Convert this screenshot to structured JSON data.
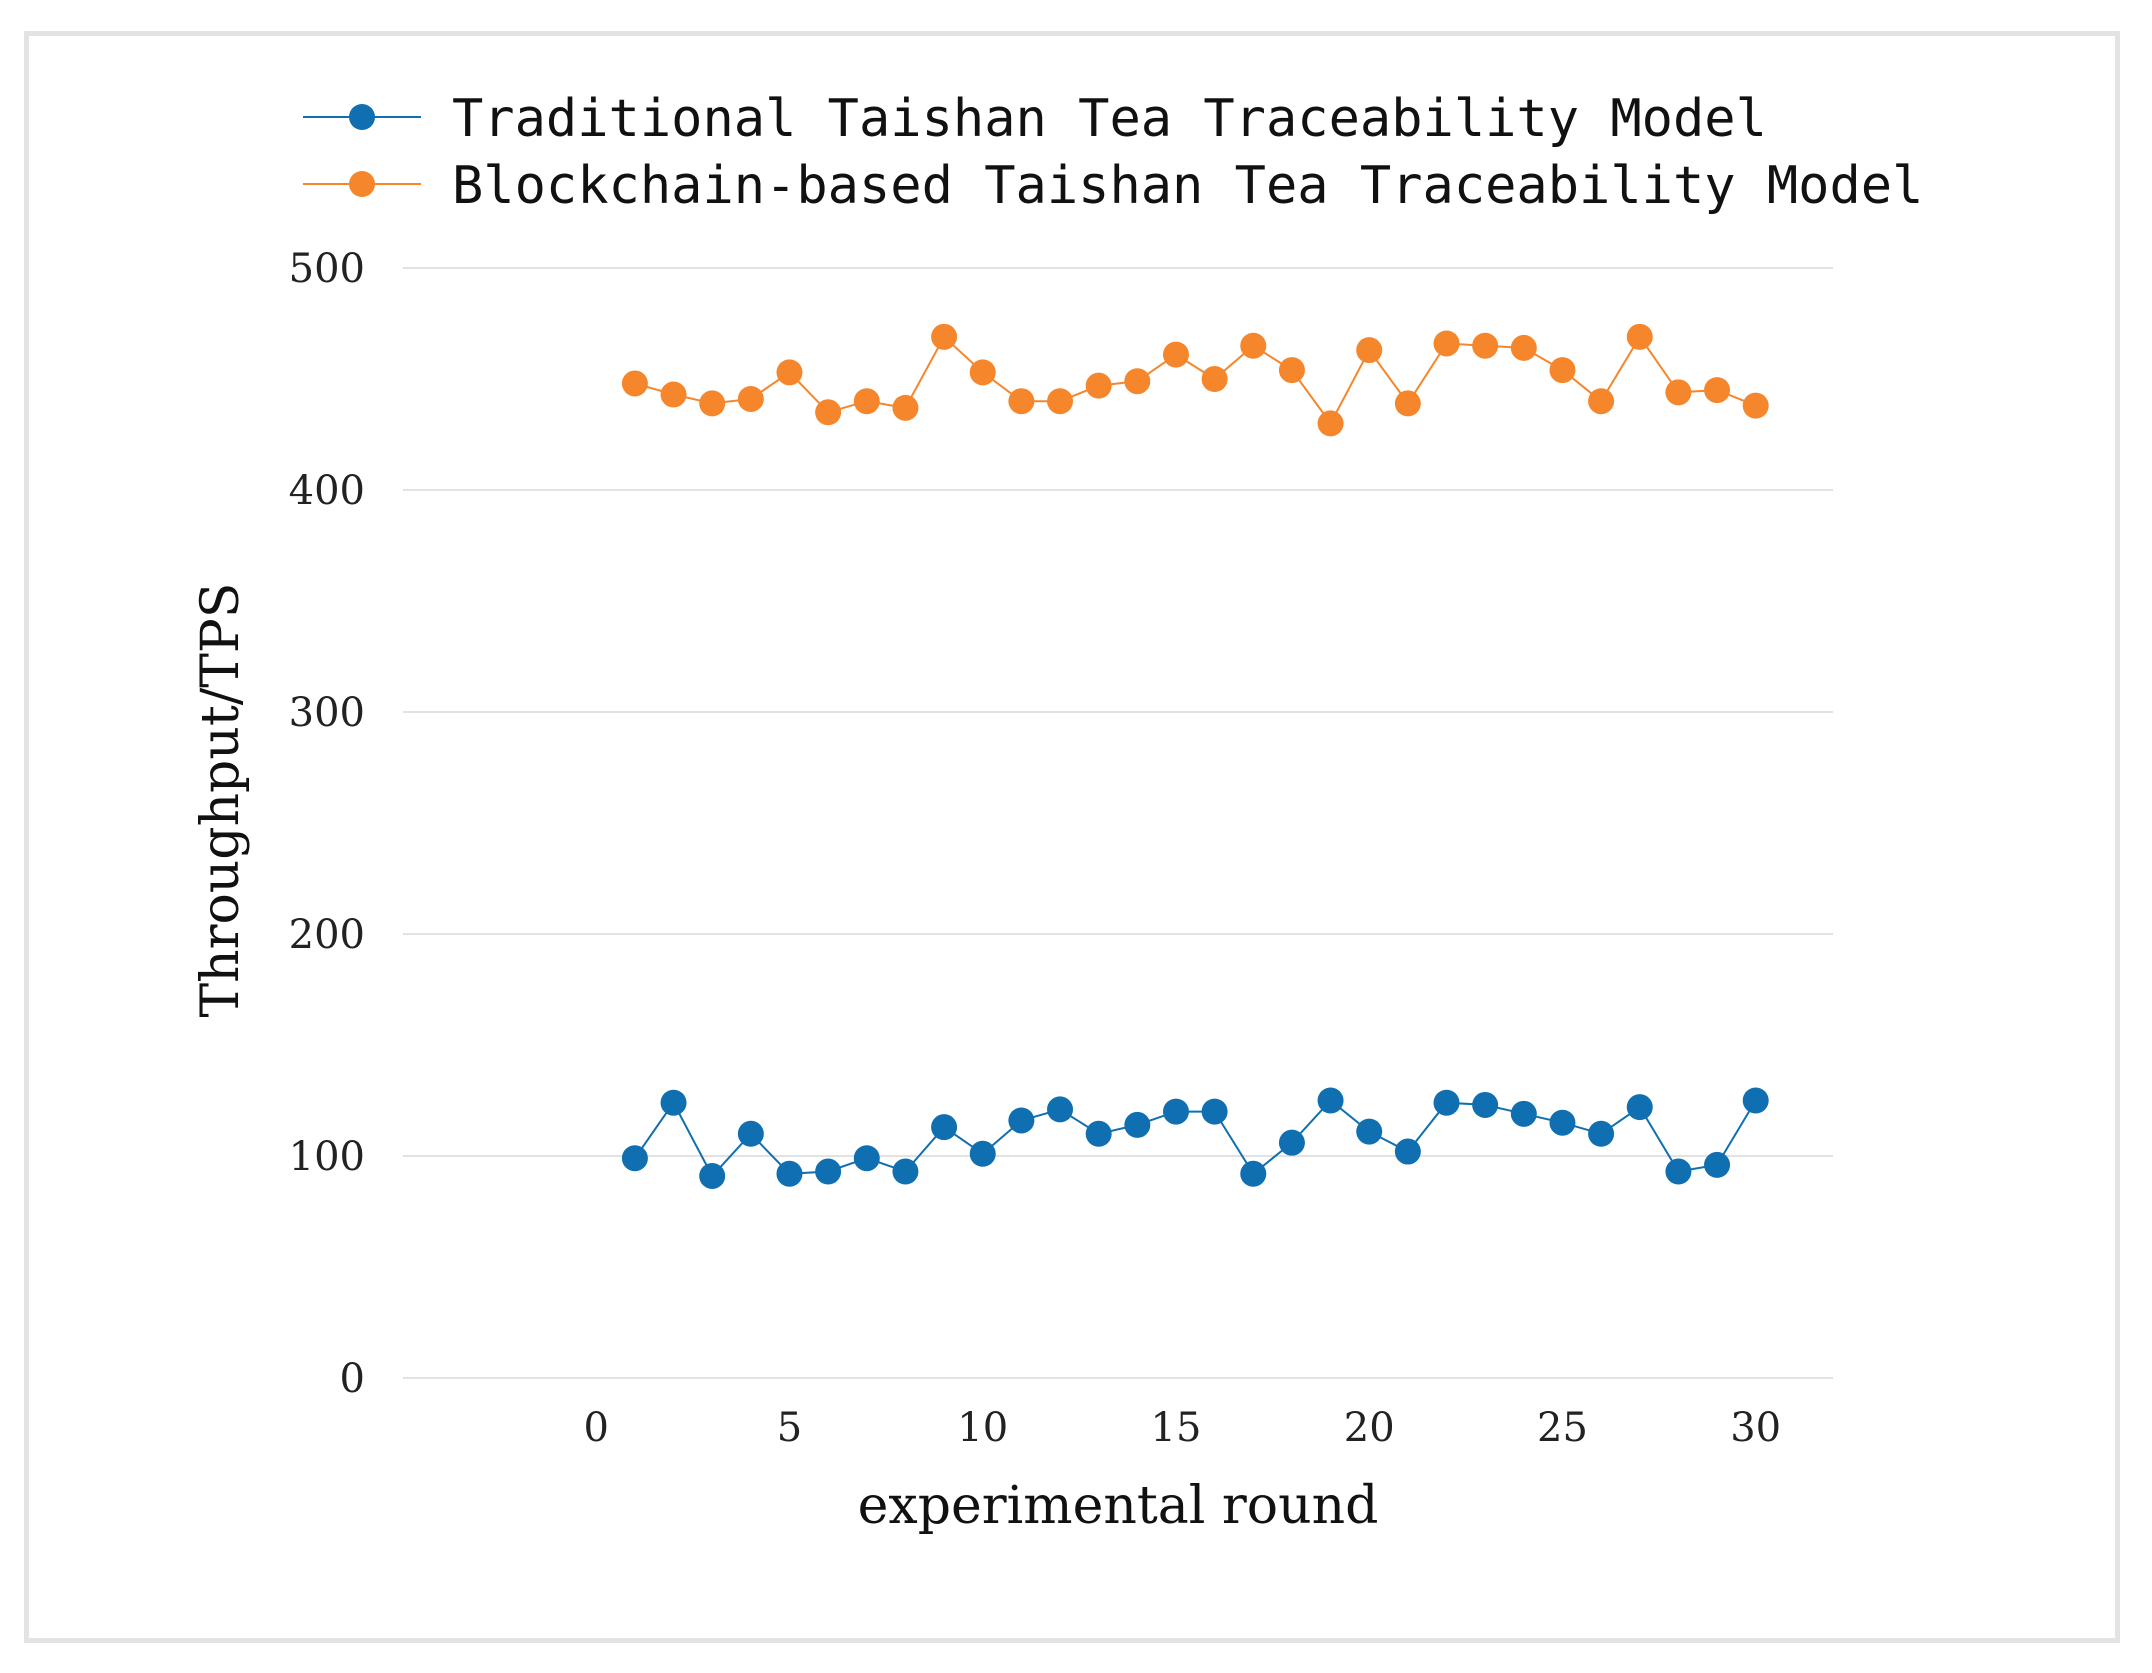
{
  "chart_data": {
    "type": "line",
    "title": "",
    "xlabel": "experimental round",
    "ylabel": "Throughput/TPS",
    "xlim": [
      -5,
      32
    ],
    "ylim": [
      0,
      500
    ],
    "x_ticks": [
      0,
      5,
      10,
      15,
      20,
      25,
      30
    ],
    "y_ticks": [
      0,
      100,
      200,
      300,
      400,
      500
    ],
    "grid": "horizontal",
    "legend_position": "top-left",
    "x": [
      1,
      2,
      3,
      4,
      5,
      6,
      7,
      8,
      9,
      10,
      11,
      12,
      13,
      14,
      15,
      16,
      17,
      18,
      19,
      20,
      21,
      22,
      23,
      24,
      25,
      26,
      27,
      28,
      29,
      30
    ],
    "series": [
      {
        "name": "Traditional Taishan Tea Traceability Model",
        "color": "#0f6fb0",
        "values": [
          99,
          124,
          91,
          110,
          92,
          93,
          99,
          93,
          113,
          101,
          116,
          121,
          110,
          114,
          120,
          120,
          92,
          106,
          125,
          111,
          102,
          124,
          123,
          119,
          115,
          110,
          122,
          93,
          96,
          125
        ]
      },
      {
        "name": "Blockchain-based Taishan Tea Traceability Model",
        "color": "#f5862b",
        "values": [
          448,
          443,
          439,
          441,
          453,
          435,
          440,
          437,
          469,
          453,
          440,
          440,
          447,
          449,
          461,
          450,
          465,
          454,
          430,
          463,
          439,
          466,
          465,
          464,
          454,
          440,
          469,
          444,
          445,
          438
        ]
      }
    ]
  }
}
